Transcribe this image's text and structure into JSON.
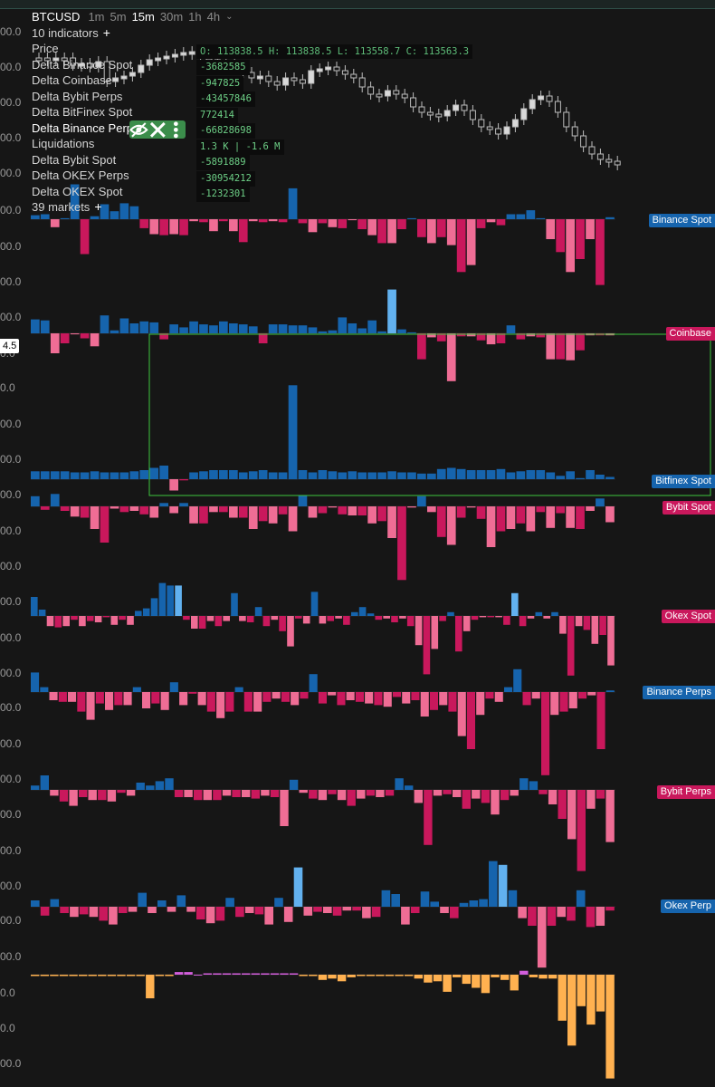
{
  "header": {
    "symbol": "BTCUSD",
    "timeframes": [
      "1m",
      "5m",
      "15m",
      "30m",
      "1h",
      "4h"
    ],
    "active_timeframe": "15m",
    "indicators_label": "10 indicators",
    "markets_label": "39 markets"
  },
  "indicators": [
    "Price",
    "Delta Binance Spot",
    "Delta Coinbase",
    "Delta Bybit Perps",
    "Delta BitFinex Spot",
    "Delta Binance Perps",
    "Liquidations",
    "Delta Bybit Spot",
    "Delta OKEX Perps",
    "Delta OKEX Spot"
  ],
  "active_indicator": "Delta Binance Perps",
  "ohlc": "O: 113838.5 H: 113838.5 L: 113558.7 C: 113563.3",
  "indicator_values": [
    "-3682585",
    "-947825",
    "-43457846",
    "772414",
    "-66828698",
    "1.3 K | -1.6 M",
    "-5891889",
    "-30954212",
    "-1232301"
  ],
  "axis_labels": [
    "00.0",
    "00.0",
    "00.0",
    "00.0",
    "00.0",
    "00.0",
    "00.0",
    "00.0",
    "00.0",
    "0.0",
    "0.0",
    "00.0",
    "00.0",
    "00.0",
    "00.0",
    "00.0",
    "00.0",
    "00.0",
    "00.0",
    "00.0",
    "00.0",
    "00.0",
    "00.0",
    "00.0",
    "00.0",
    "00.0",
    "00.0",
    "0.0",
    "0.0",
    "00.0",
    "00.0",
    "00.0"
  ],
  "cursor_label": "4.5",
  "pane_labels": [
    "Binance Spot",
    "Coinbase",
    "Bitfinex Spot",
    "Bybit Spot",
    "Okex Spot",
    "Binance Perps",
    "Bybit Perps",
    "Okex Perp"
  ],
  "colors": {
    "background": "#161616",
    "buy_strong": "#1664ad",
    "buy_light": "#62b1ef",
    "sell_strong": "#c9185c",
    "sell_light": "#ef6d95",
    "liquidation_sell": "#ffb150",
    "liquidation_buy": "#d25edb",
    "up_candle": "#d9d9d9",
    "indicator_values": "#6dcf86",
    "selection_box": "#3ec73e",
    "tools_bg": "#3b8d4b"
  },
  "chart_data": {
    "price_candles_close_trend": [
      113838.5,
      113838.5,
      113558.7,
      113563.3
    ],
    "panes": [
      {
        "name": "Binance Spot",
        "values": [
          0.4,
          0.5,
          -0.8,
          0.1,
          3.5,
          -3.5,
          0.3,
          1.5,
          0.8,
          1.6,
          1.3,
          -0.9,
          -1.5,
          -1.6,
          -1.5,
          -1.6,
          -0.2,
          -0.3,
          -1.2,
          -0.2,
          -1.2,
          -2.3,
          -0.2,
          -0.3,
          -0.2,
          -0.3,
          3.1,
          -0.4,
          -1.3,
          -0.4,
          -0.8,
          -0.9,
          -0.1,
          -1.0,
          -1.6,
          -2.4,
          -2.4,
          -1.0,
          0.1,
          -1.8,
          -2.4,
          -1.8,
          -2.6,
          -5.3,
          -4.6,
          -0.9,
          -0.3,
          -0.6,
          0.5,
          0.5,
          0.9,
          0.1,
          -2.0,
          -3.3,
          -5.3,
          -4.0,
          -2.0,
          -6.6,
          0.2
        ]
      },
      {
        "name": "Coinbase",
        "values": [
          1.4,
          1.3,
          -2.0,
          -1.0,
          -0.1,
          -0.5,
          -1.3,
          1.8,
          0.3,
          1.5,
          1.0,
          1.2,
          1.1,
          -0.6,
          0.9,
          0.6,
          1.2,
          0.9,
          0.8,
          1.2,
          1.0,
          0.9,
          0.7,
          -1.0,
          0.9,
          0.9,
          0.8,
          0.8,
          0.6,
          0.2,
          0.3,
          1.6,
          1.0,
          0.5,
          1.3,
          0.2,
          4.4,
          0.4,
          0.1,
          -2.6,
          -0.4,
          -0.8,
          -4.8,
          -0.3,
          -0.3,
          -0.7,
          -1.1,
          -1.0,
          0.8,
          -0.6,
          -0.3,
          -0.4,
          -2.6,
          -2.6,
          -2.7,
          -1.7,
          -0.2,
          -0.2,
          -0.2
        ]
      },
      {
        "name": "Bitfinex Spot",
        "values": [
          0.7,
          0.7,
          0.7,
          0.7,
          0.6,
          0.6,
          0.7,
          0.6,
          0.6,
          0.6,
          0.7,
          0.8,
          1.0,
          1.2,
          -1.0,
          -0.1,
          0.6,
          0.7,
          0.8,
          0.8,
          0.8,
          0.6,
          0.7,
          0.8,
          0.6,
          0.6,
          8.3,
          0.8,
          0.6,
          0.8,
          0.7,
          0.6,
          0.7,
          0.6,
          0.6,
          0.6,
          0.7,
          0.6,
          0.6,
          0.5,
          0.5,
          0.9,
          1.0,
          0.9,
          0.8,
          0.8,
          0.8,
          0.9,
          0.6,
          0.7,
          0.8,
          0.8,
          0.6,
          0.3,
          0.7,
          0.1,
          0.8,
          0.4,
          0.2
        ]
      },
      {
        "name": "Bybit Spot",
        "values": [
          0.9,
          -0.3,
          1.1,
          -0.4,
          -0.9,
          -1.0,
          -2.0,
          -3.2,
          -0.2,
          -0.5,
          -0.4,
          -0.7,
          -1.0,
          0.3,
          -0.6,
          0.3,
          -1.5,
          -1.5,
          -0.5,
          -0.5,
          -1.0,
          -1.0,
          -2.0,
          -1.3,
          -1.5,
          -0.7,
          -2.2,
          1.0,
          -1.0,
          -0.6,
          -0.1,
          -0.7,
          -0.8,
          -0.8,
          -1.5,
          -1.3,
          -2.8,
          -6.5,
          -0.1,
          0.9,
          -0.5,
          -2.7,
          -3.4,
          -1.0,
          -0.1,
          -1.1,
          -3.6,
          -2.2,
          -2.0,
          -1.5,
          -2.2,
          -0.5,
          -1.9,
          -0.6,
          -1.9,
          -2.0,
          -0.4,
          0.7,
          -1.4
        ]
      },
      {
        "name": "Okex Spot",
        "values": [
          1.5,
          0.5,
          -0.8,
          -0.9,
          -0.8,
          -0.3,
          -0.8,
          -0.4,
          -0.5,
          -0.1,
          -0.7,
          -0.3,
          -0.7,
          0.4,
          0.6,
          1.4,
          2.6,
          2.4,
          2.4,
          -0.3,
          -1.0,
          -1.0,
          -0.4,
          -0.8,
          -0.4,
          1.8,
          -0.4,
          -0.5,
          0.7,
          -0.8,
          -0.3,
          -1.2,
          -2.4,
          -0.2,
          -0.6,
          1.9,
          -0.6,
          -0.4,
          -0.2,
          -0.7,
          0.3,
          0.7,
          0.2,
          -0.3,
          -0.2,
          -0.5,
          -0.2,
          -0.8,
          -2.3,
          -4.6,
          -2.6,
          -0.4,
          0.3,
          -2.8,
          -1.2,
          -0.3,
          -0.1,
          -0.1,
          -0.1,
          -0.7,
          1.8,
          -0.8,
          -0.2,
          0.3,
          -0.2,
          0.3,
          -1.4,
          -4.7,
          -0.8,
          -1.1,
          -2.2,
          -1.5,
          -3.9
        ]
      },
      {
        "name": "Binance Perps",
        "values": [
          1.2,
          0.3,
          -0.5,
          -0.6,
          -0.6,
          -1.2,
          -1.7,
          -0.7,
          -1.1,
          -0.8,
          -0.8,
          0.3,
          -1.0,
          -0.7,
          -1.1,
          0.6,
          -0.8,
          -0.1,
          -0.8,
          -1.2,
          -1.6,
          -1.2,
          0.3,
          -1.2,
          -1.2,
          -0.6,
          -0.4,
          -0.6,
          -0.8,
          -0.4,
          1.1,
          -0.7,
          -0.2,
          -0.8,
          -0.5,
          -0.6,
          -0.7,
          -0.8,
          -0.9,
          -0.3,
          -0.7,
          -0.5,
          -1.5,
          -1.1,
          -0.8,
          -1.2,
          -2.7,
          -3.5,
          -1.4,
          -0.4,
          -0.6,
          0.3,
          1.4,
          -0.8,
          -0.4,
          -5.1,
          -1.4,
          -1.2,
          -1.0,
          -0.4,
          -0.2,
          -3.5,
          0.1
        ]
      },
      {
        "name": "Bybit Perps",
        "values": [
          0.3,
          1.0,
          -0.4,
          -0.8,
          -1.1,
          -0.5,
          -0.7,
          -0.7,
          -0.8,
          -0.2,
          -0.4,
          0.5,
          0.3,
          0.6,
          0.8,
          -0.5,
          -0.5,
          -0.7,
          -0.7,
          -0.7,
          -0.4,
          -0.5,
          -0.5,
          -0.6,
          -0.4,
          -0.5,
          -2.5,
          0.7,
          -0.2,
          -0.6,
          -0.7,
          -0.3,
          -0.7,
          -1.1,
          -0.6,
          -0.4,
          -0.5,
          -0.4,
          0.8,
          0.3,
          -0.9,
          -3.8,
          -0.4,
          -0.3,
          -0.5,
          -1.3,
          -0.6,
          -0.9,
          -1.7,
          -0.7,
          -0.4,
          0.8,
          0.6,
          -0.3,
          -1.0,
          -2.0,
          -3.4,
          -5.6,
          -1.3,
          -0.6,
          -3.6
        ]
      },
      {
        "name": "Okex Perp",
        "values": [
          0.5,
          -0.7,
          0.6,
          -0.5,
          -0.8,
          -0.6,
          -0.8,
          -1.1,
          -1.4,
          -0.5,
          -0.4,
          1.1,
          -0.5,
          0.5,
          -0.4,
          0.9,
          -0.4,
          -1.0,
          -1.3,
          -1.1,
          0.7,
          -0.8,
          -0.5,
          -0.6,
          -1.4,
          0.7,
          -1.2,
          3.1,
          -0.7,
          -0.4,
          -0.5,
          -0.7,
          -0.3,
          -0.3,
          -0.9,
          -0.8,
          1.3,
          1.0,
          -1.4,
          -0.5,
          1.2,
          0.4,
          -0.5,
          -0.9,
          0.3,
          0.5,
          0.6,
          3.6,
          3.3,
          1.3,
          -0.9,
          -1.5,
          -4.8,
          -1.5,
          -0.8,
          -1.1,
          1.3,
          -1.6,
          -1.5,
          -0.3
        ]
      },
      {
        "name": "Liquidations",
        "values": [
          -0.1,
          -0.1,
          -0.1,
          -0.1,
          -0.1,
          -0.1,
          -0.1,
          -0.1,
          -0.1,
          -0.1,
          -0.1,
          -0.1,
          -1.8,
          -0.1,
          -0.1,
          0.2,
          0.2,
          0.0,
          0.1,
          0.1,
          0.1,
          0.1,
          0.1,
          0.1,
          0.1,
          0.1,
          0.1,
          0.1,
          -0.1,
          -0.1,
          -0.4,
          -0.3,
          -0.5,
          -0.2,
          -0.1,
          -0.1,
          -0.1,
          -0.1,
          -0.1,
          -0.1,
          -0.3,
          -0.6,
          -0.5,
          -1.3,
          -0.2,
          -0.7,
          -1.0,
          -1.4,
          -0.2,
          -0.4,
          -1.2,
          0.3,
          -0.2,
          -0.3,
          -0.3,
          -3.5,
          -5.4,
          -2.4,
          -3.8,
          -2.8,
          -7.9
        ]
      }
    ]
  }
}
